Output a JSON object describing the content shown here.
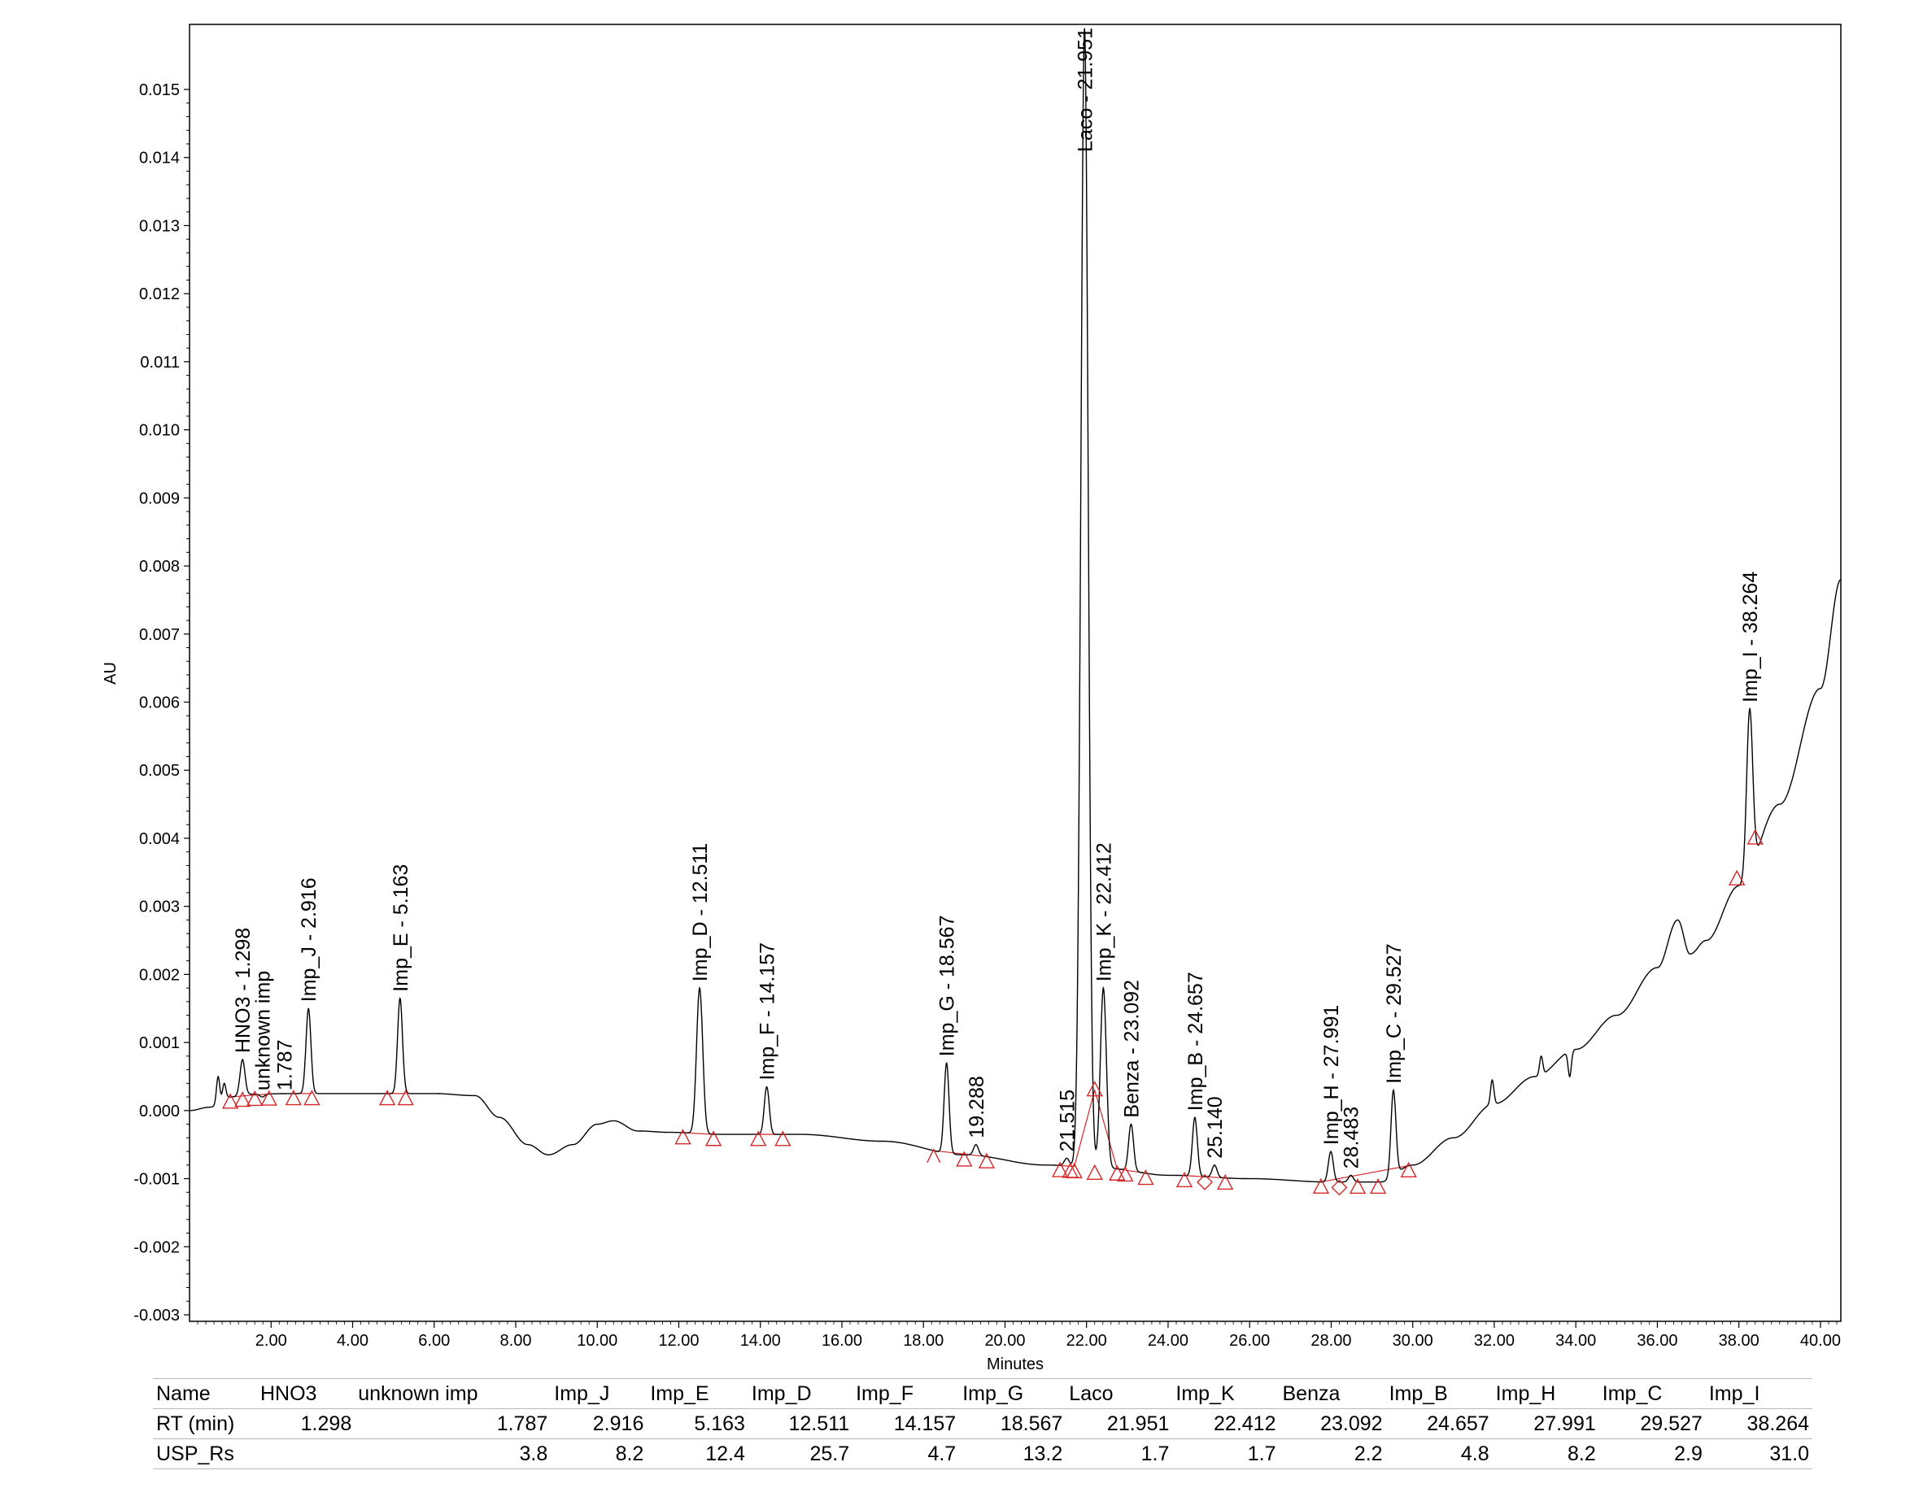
{
  "colors": {
    "trace": "#000000",
    "baseline": "#d62728",
    "axis": "#000000"
  },
  "chart_data": {
    "type": "line",
    "title": "",
    "xlabel": "Minutes",
    "ylabel": "AU",
    "xlim": [
      0,
      40.5
    ],
    "ylim": [
      -0.003,
      0.0159
    ],
    "grid": false,
    "x_ticks": [
      "2.00",
      "4.00",
      "6.00",
      "8.00",
      "10.00",
      "12.00",
      "14.00",
      "16.00",
      "18.00",
      "20.00",
      "22.00",
      "24.00",
      "26.00",
      "28.00",
      "30.00",
      "32.00",
      "34.00",
      "36.00",
      "38.00",
      "40.00"
    ],
    "y_ticks": [
      "0.015",
      "0.014",
      "0.013",
      "0.012",
      "0.011",
      "0.010",
      "0.009",
      "0.008",
      "0.007",
      "0.006",
      "0.005",
      "0.004",
      "0.003",
      "0.002",
      "0.001",
      "0.000",
      "-0.001",
      "-0.002",
      "-0.003"
    ],
    "baseline_points": [
      [
        0,
        0.0
      ],
      [
        0.5,
        5e-05
      ],
      [
        1.0,
        0.0002
      ],
      [
        1.5,
        0.00024
      ],
      [
        2.5,
        0.00025
      ],
      [
        4.0,
        0.00025
      ],
      [
        6.0,
        0.00025
      ],
      [
        7.0,
        0.00022
      ],
      [
        7.6,
        -0.0001
      ],
      [
        8.3,
        -0.0005
      ],
      [
        8.8,
        -0.00065
      ],
      [
        9.4,
        -0.0005
      ],
      [
        10.0,
        -0.0002
      ],
      [
        10.4,
        -0.00015
      ],
      [
        11.0,
        -0.0003
      ],
      [
        11.8,
        -0.00032
      ],
      [
        13.0,
        -0.00035
      ],
      [
        15.0,
        -0.00035
      ],
      [
        17.0,
        -0.00045
      ],
      [
        19.0,
        -0.00065
      ],
      [
        21.0,
        -0.0008
      ],
      [
        22.5,
        -0.00085
      ],
      [
        24.0,
        -0.00095
      ],
      [
        26.0,
        -0.001
      ],
      [
        28.0,
        -0.00105
      ],
      [
        29.2,
        -0.00105
      ],
      [
        30.0,
        -0.0008
      ],
      [
        31.0,
        -0.0004
      ],
      [
        32.0,
        0.0001
      ],
      [
        33.0,
        0.0005
      ],
      [
        34.0,
        0.0009
      ],
      [
        35.0,
        0.0014
      ],
      [
        36.0,
        0.0021
      ],
      [
        36.5,
        0.0028
      ],
      [
        36.8,
        0.0023
      ],
      [
        37.2,
        0.0025
      ],
      [
        38.0,
        0.0033
      ],
      [
        39.0,
        0.0045
      ],
      [
        40.0,
        0.0062
      ],
      [
        40.5,
        0.0078
      ]
    ],
    "minor_bumps": [
      [
        0.7,
        0.0005
      ],
      [
        0.85,
        0.0004
      ],
      [
        31.95,
        0.00045
      ],
      [
        33.15,
        0.0008
      ],
      [
        33.85,
        0.0005
      ]
    ],
    "peaks": [
      {
        "name": "HNO3",
        "rt": 1.298,
        "apex": 0.00075,
        "label": "HNO3 - 1.298",
        "layout": "apex"
      },
      {
        "name": "unknown imp",
        "rt": 1.787,
        "apex": 0.0002,
        "label": "unknown imp",
        "label2": "1.787",
        "layout": "apex"
      },
      {
        "name": "Imp_J",
        "rt": 2.916,
        "apex": 0.0015,
        "label": "Imp_J - 2.916",
        "layout": "apex"
      },
      {
        "name": "Imp_E",
        "rt": 5.163,
        "apex": 0.00165,
        "label": "Imp_E - 5.163",
        "layout": "apex"
      },
      {
        "name": "Imp_D",
        "rt": 12.511,
        "apex": 0.0018,
        "label": "Imp_D - 12.511",
        "layout": "apex"
      },
      {
        "name": "Imp_F",
        "rt": 14.157,
        "apex": 0.00035,
        "label": "Imp_F - 14.157",
        "layout": "apex"
      },
      {
        "name": "Imp_G",
        "rt": 18.567,
        "apex": 0.0007,
        "label": "Imp_G - 18.567",
        "layout": "apex"
      },
      {
        "name": "",
        "rt": 19.288,
        "apex": -0.0005,
        "label": "19.288",
        "layout": "apex"
      },
      {
        "name": "",
        "rt": 21.515,
        "apex": -0.0007,
        "label": "21.515",
        "layout": "apex"
      },
      {
        "name": "Laco",
        "rt": 21.951,
        "apex": 0.0159,
        "label": "Laco - 21.951",
        "layout": "inside"
      },
      {
        "name": "Imp_K",
        "rt": 22.412,
        "apex": 0.0018,
        "label": "Imp_K - 22.412",
        "layout": "apex"
      },
      {
        "name": "Benza",
        "rt": 23.092,
        "apex": -0.0002,
        "label": "Benza - 23.092",
        "layout": "apex"
      },
      {
        "name": "Imp_B",
        "rt": 24.657,
        "apex": -0.0001,
        "label": "Imp_B - 24.657",
        "layout": "apex"
      },
      {
        "name": "",
        "rt": 25.14,
        "apex": -0.0008,
        "label": "25.140",
        "layout": "apex"
      },
      {
        "name": "Imp_H",
        "rt": 27.991,
        "apex": -0.0006,
        "label": "Imp_H - 27.991",
        "layout": "apex"
      },
      {
        "name": "",
        "rt": 28.483,
        "apex": -0.00095,
        "label": "28.483",
        "layout": "apex"
      },
      {
        "name": "Imp_C",
        "rt": 29.527,
        "apex": 0.0003,
        "label": "Imp_C - 29.527",
        "layout": "apex"
      },
      {
        "name": "Imp_I",
        "rt": 38.264,
        "apex": 0.0059,
        "label": "Imp_I - 38.264",
        "layout": "apex"
      }
    ],
    "peak_markers": [
      {
        "x": 1.0,
        "shape": "triangle"
      },
      {
        "x": 1.3,
        "shape": "triangle"
      },
      {
        "x": 1.6,
        "shape": "triangle"
      },
      {
        "x": 1.95,
        "shape": "triangle"
      },
      {
        "x": 2.55,
        "shape": "triangle"
      },
      {
        "x": 3.0,
        "shape": "triangle"
      },
      {
        "x": 4.85,
        "shape": "triangle"
      },
      {
        "x": 5.3,
        "shape": "triangle"
      },
      {
        "x": 12.1,
        "shape": "triangle"
      },
      {
        "x": 12.85,
        "shape": "triangle"
      },
      {
        "x": 13.95,
        "shape": "triangle"
      },
      {
        "x": 14.55,
        "shape": "triangle"
      },
      {
        "x": 18.25,
        "shape": "caret"
      },
      {
        "x": 19.0,
        "shape": "triangle"
      },
      {
        "x": 19.55,
        "shape": "triangle"
      },
      {
        "x": 21.35,
        "shape": "triangle"
      },
      {
        "x": 21.6,
        "shape": "triangle"
      },
      {
        "x": 21.7,
        "shape": "triangle"
      },
      {
        "x": 22.2,
        "shape": "triangle"
      },
      {
        "x": 22.75,
        "shape": "triangle"
      },
      {
        "x": 22.95,
        "shape": "triangle"
      },
      {
        "x": 23.45,
        "shape": "triangle"
      },
      {
        "x": 24.4,
        "shape": "triangle"
      },
      {
        "x": 24.9,
        "shape": "diamond"
      },
      {
        "x": 25.4,
        "shape": "triangle"
      },
      {
        "x": 27.75,
        "shape": "triangle"
      },
      {
        "x": 28.2,
        "shape": "diamond"
      },
      {
        "x": 28.65,
        "shape": "triangle"
      },
      {
        "x": 29.15,
        "shape": "triangle"
      },
      {
        "x": 29.9,
        "shape": "triangle"
      },
      {
        "x": 37.95,
        "shape": "triangle"
      },
      {
        "x": 38.4,
        "shape": "triangle"
      }
    ],
    "k_peak_baseline_marker": {
      "x": 22.2,
      "value": 0.0003
    },
    "imp_i_markers": [
      {
        "x": 37.95,
        "value": 0.0034
      },
      {
        "x": 38.4,
        "value": 0.004
      }
    ]
  },
  "table": {
    "row_headers": [
      "Name",
      "RT (min)",
      "USP_Rs"
    ],
    "names": [
      "HNO3",
      "unknown imp",
      "Imp_J",
      "Imp_E",
      "Imp_D",
      "Imp_F",
      "Imp_G",
      "Laco",
      "Imp_K",
      "Benza",
      "Imp_B",
      "Imp_H",
      "Imp_C",
      "Imp_I"
    ],
    "rt": [
      "1.298",
      "1.787",
      "2.916",
      "5.163",
      "12.511",
      "14.157",
      "18.567",
      "21.951",
      "22.412",
      "23.092",
      "24.657",
      "27.991",
      "29.527",
      "38.264"
    ],
    "usp_rs": [
      "",
      "3.8",
      "8.2",
      "12.4",
      "25.7",
      "4.7",
      "13.2",
      "1.7",
      "1.7",
      "2.2",
      "4.8",
      "8.2",
      "2.9",
      "31.0"
    ]
  }
}
